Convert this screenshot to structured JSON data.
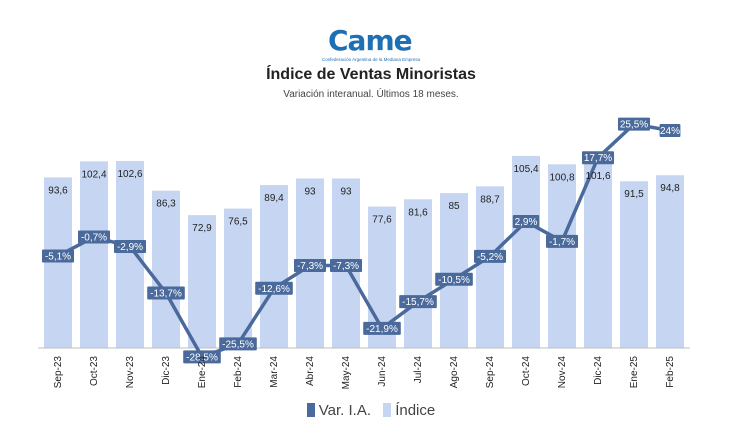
{
  "logo": {
    "text": "Came",
    "tagline": "Confederación Argentina de la Mediana Empresa"
  },
  "colors": {
    "bar": "#c6d6f2",
    "line": "#4a6a9c",
    "label_bg": "#4a6a9c"
  },
  "chart_data": {
    "type": "bar+line",
    "title": "Índice de Ventas Minoristas",
    "subtitle": "Variación interanual. Últimos 18 meses.",
    "categories": [
      "Sep-23",
      "Oct-23",
      "Nov-23",
      "Dic-23",
      "Ene-24",
      "Feb-24",
      "Mar-24",
      "Abr-24",
      "May-24",
      "Jun-24",
      "Jul-24",
      "Ago-24",
      "Sep-24",
      "Oct-24",
      "Nov-24",
      "Dic-24",
      "Ene-25",
      "Feb-25"
    ],
    "series": [
      {
        "name": "Índice",
        "type": "bar",
        "values": [
          93.6,
          102.4,
          102.6,
          86.3,
          72.9,
          76.5,
          89.4,
          93,
          93,
          77.6,
          81.6,
          85,
          88.7,
          105.4,
          100.8,
          101.6,
          91.5,
          94.8
        ],
        "labels": [
          "93,6",
          "102,4",
          "102,6",
          "86,3",
          "72,9",
          "76,5",
          "89,4",
          "93",
          "93",
          "77,6",
          "81,6",
          "85",
          "88,7",
          "105,4",
          "100,8",
          "101,6",
          "91,5",
          "94,8"
        ]
      },
      {
        "name": "Var. I.A.",
        "type": "line",
        "values": [
          -5.1,
          -0.7,
          -2.9,
          -13.7,
          -28.5,
          -25.5,
          -12.6,
          -7.3,
          -7.3,
          -21.9,
          -15.7,
          -10.5,
          -5.2,
          2.9,
          -1.7,
          17.7,
          25.5,
          24
        ],
        "labels": [
          "-5,1%",
          "-0,7%",
          "-2,9%",
          "-13,7%",
          "-28,5%",
          "-25,5%",
          "-12,6%",
          "-7,3%",
          "-7,3%",
          "-21,9%",
          "-15,7%",
          "-10,5%",
          "-5,2%",
          "2,9%",
          "-1,7%",
          "17,7%",
          "25,5%",
          "24%"
        ]
      }
    ],
    "legend": {
      "position": "bottom",
      "items": [
        "Var. I.A.",
        "Índice"
      ]
    },
    "grid": false
  }
}
